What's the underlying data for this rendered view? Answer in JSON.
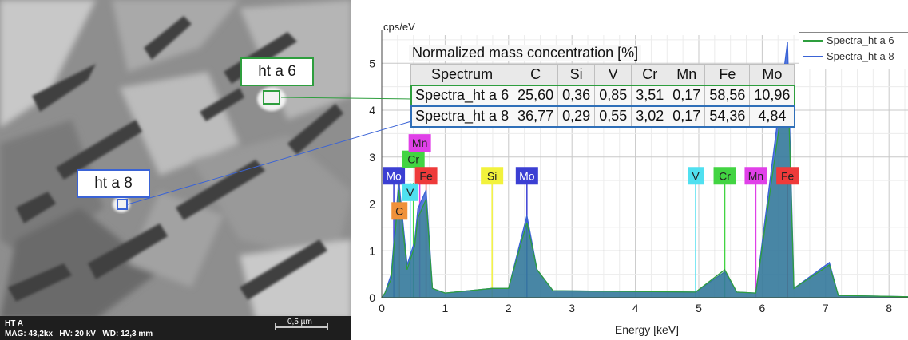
{
  "sem": {
    "callout_6": "ht a 6",
    "callout_8": "ht a 8",
    "sample": "HT A",
    "mag": "MAG: 43,2kx",
    "hv": "HV: 20 kV",
    "wd": "WD: 12,3 mm",
    "scale": "0,5 µm"
  },
  "table": {
    "title": "Normalized mass concentration [%]",
    "headers": [
      "Spectrum",
      "C",
      "Si",
      "V",
      "Cr",
      "Mn",
      "Fe",
      "Mo"
    ],
    "rows": [
      [
        "Spectra_ht a 6",
        "25,60",
        "0,36",
        "0,85",
        "3,51",
        "0,17",
        "58,56",
        "10,96"
      ],
      [
        "Spectra_ht a 8",
        "36,77",
        "0,29",
        "0,55",
        "3,02",
        "0,17",
        "54,36",
        "4,84"
      ]
    ]
  },
  "legend": [
    "Spectra_ht a 6",
    "Spectra_ht a 8"
  ],
  "colors": {
    "series_6": "#2e9e3e",
    "series_8": "#3a63d6",
    "C": "#f0913a",
    "Mo": "#3b3fd3",
    "Cr": "#42d442",
    "V": "#50e0f0",
    "Fe": "#ee3a3a",
    "Mn": "#e040e8",
    "Si": "#f2f23c"
  },
  "chart_data": {
    "type": "line",
    "ylabel": "cps/eV",
    "xlabel": "Energy [keV]",
    "xlim": [
      0,
      8.3
    ],
    "ylim": [
      0,
      5.6
    ],
    "xticks": [
      0,
      1,
      2,
      3,
      4,
      5,
      6,
      7,
      8
    ],
    "yticks": [
      0,
      1,
      2,
      3,
      4,
      5
    ],
    "series": [
      {
        "name": "Spectra_ht a 6",
        "points": [
          [
            0.05,
            0.1
          ],
          [
            0.15,
            0.4
          ],
          [
            0.27,
            2.3
          ],
          [
            0.4,
            0.6
          ],
          [
            0.52,
            1.1
          ],
          [
            0.57,
            1.7
          ],
          [
            0.7,
            2.1
          ],
          [
            0.8,
            0.2
          ],
          [
            1.0,
            0.1
          ],
          [
            1.74,
            0.2
          ],
          [
            2.0,
            0.2
          ],
          [
            2.29,
            1.6
          ],
          [
            2.45,
            0.6
          ],
          [
            2.7,
            0.15
          ],
          [
            4.95,
            0.12
          ],
          [
            5.41,
            0.6
          ],
          [
            5.6,
            0.12
          ],
          [
            5.9,
            0.1
          ],
          [
            6.4,
            4.9
          ],
          [
            6.5,
            0.2
          ],
          [
            7.06,
            0.7
          ],
          [
            7.2,
            0.05
          ],
          [
            8.3,
            0.02
          ]
        ]
      },
      {
        "name": "Spectra_ht a 8",
        "points": [
          [
            0.05,
            0.1
          ],
          [
            0.15,
            0.5
          ],
          [
            0.27,
            2.5
          ],
          [
            0.4,
            0.7
          ],
          [
            0.52,
            1.2
          ],
          [
            0.57,
            1.9
          ],
          [
            0.7,
            2.3
          ],
          [
            0.8,
            0.2
          ],
          [
            1.0,
            0.1
          ],
          [
            1.74,
            0.2
          ],
          [
            2.0,
            0.2
          ],
          [
            2.29,
            1.75
          ],
          [
            2.45,
            0.6
          ],
          [
            2.7,
            0.15
          ],
          [
            4.95,
            0.12
          ],
          [
            5.41,
            0.55
          ],
          [
            5.6,
            0.12
          ],
          [
            5.9,
            0.1
          ],
          [
            6.4,
            5.45
          ],
          [
            6.5,
            0.2
          ],
          [
            7.06,
            0.75
          ],
          [
            7.2,
            0.05
          ],
          [
            8.3,
            0.02
          ]
        ]
      }
    ],
    "element_labels": [
      {
        "label": "Mo",
        "x": 0.19,
        "y": 2.6,
        "color": "#3b3fd3"
      },
      {
        "label": "Cr",
        "x": 0.5,
        "y": 2.95,
        "color": "#42d442"
      },
      {
        "label": "Mn",
        "x": 0.6,
        "y": 3.3,
        "color": "#e040e8"
      },
      {
        "label": "Fe",
        "x": 0.7,
        "y": 2.6,
        "color": "#ee3a3a"
      },
      {
        "label": "V",
        "x": 0.45,
        "y": 2.25,
        "color": "#50e0f0"
      },
      {
        "label": "C",
        "x": 0.28,
        "y": 1.85,
        "color": "#f0913a"
      },
      {
        "label": "Si",
        "x": 1.74,
        "y": 2.6,
        "color": "#f2f23c"
      },
      {
        "label": "Mo",
        "x": 2.29,
        "y": 2.6,
        "color": "#3b3fd3"
      },
      {
        "label": "V",
        "x": 4.95,
        "y": 2.6,
        "color": "#50e0f0"
      },
      {
        "label": "Cr",
        "x": 5.41,
        "y": 2.6,
        "color": "#42d442"
      },
      {
        "label": "Mn",
        "x": 5.9,
        "y": 2.6,
        "color": "#e040e8"
      },
      {
        "label": "Fe",
        "x": 6.4,
        "y": 2.6,
        "color": "#ee3a3a"
      }
    ],
    "peak_lines": [
      {
        "x": 0.19,
        "color": "#3b3fd3"
      },
      {
        "x": 0.28,
        "color": "#f0913a"
      },
      {
        "x": 0.45,
        "color": "#50e0f0"
      },
      {
        "x": 0.5,
        "color": "#42d442"
      },
      {
        "x": 0.6,
        "color": "#e040e8"
      },
      {
        "x": 0.7,
        "color": "#ee3a3a"
      },
      {
        "x": 1.74,
        "color": "#f2f23c"
      },
      {
        "x": 2.29,
        "color": "#3b3fd3"
      },
      {
        "x": 4.95,
        "color": "#50e0f0"
      },
      {
        "x": 5.41,
        "color": "#42d442"
      },
      {
        "x": 5.9,
        "color": "#e040e8"
      },
      {
        "x": 6.4,
        "color": "#ee3a3a"
      }
    ]
  }
}
